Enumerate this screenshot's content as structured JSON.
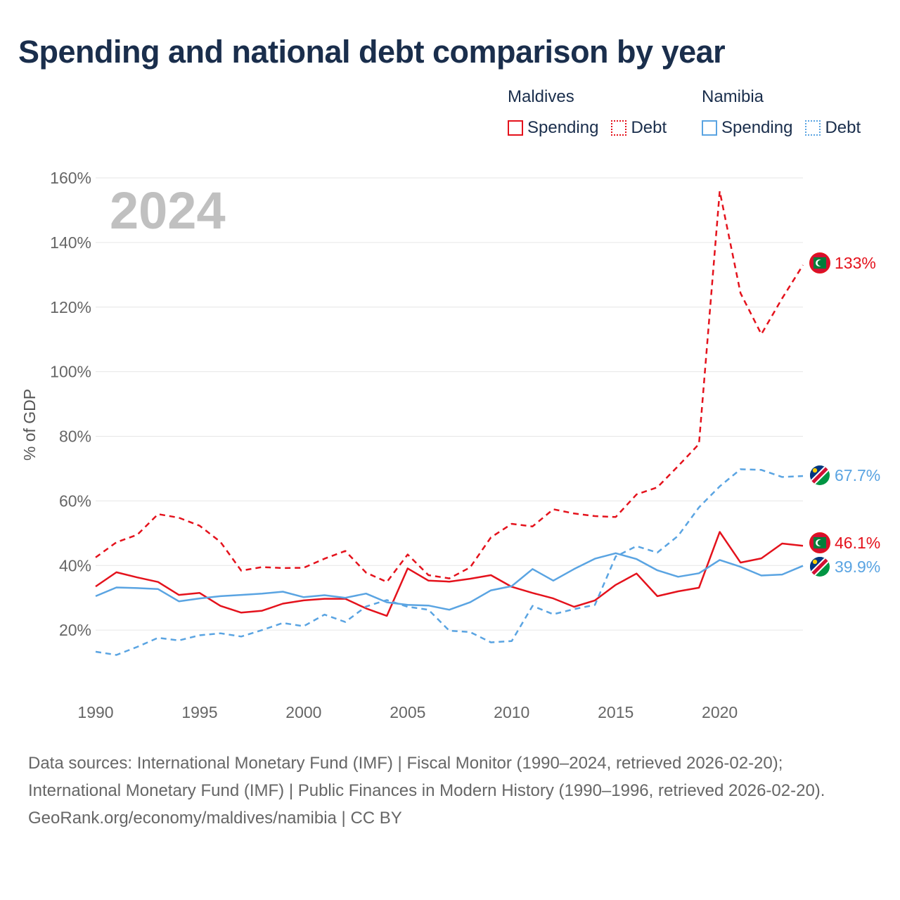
{
  "title": "Spending and national debt comparison by year",
  "legend": {
    "groups": [
      {
        "country": "Maldives",
        "color": "#e4121c",
        "items": [
          {
            "label": "Spending",
            "style": "solid"
          },
          {
            "label": "Debt",
            "style": "dotted"
          }
        ]
      },
      {
        "country": "Namibia",
        "color": "#5aa4e2",
        "items": [
          {
            "label": "Spending",
            "style": "solid"
          },
          {
            "label": "Debt",
            "style": "dotted"
          }
        ]
      }
    ]
  },
  "year_label": "2024",
  "footer": {
    "sources": "Data sources: International Monetary Fund (IMF) | Fiscal Monitor (1990–2024, retrieved 2026-02-20); International Monetary Fund (IMF) | Public Finances in Modern History (1990–1996, retrieved 2026-02-20).",
    "credit": "GeoRank.org/economy/maldives/namibia | CC BY"
  },
  "chart_data": {
    "type": "line",
    "title": "Spending and national debt comparison by year",
    "xlabel": "",
    "ylabel": "% of GDP",
    "xlim": [
      1990,
      2024
    ],
    "ylim": [
      0,
      160
    ],
    "x_ticks": [
      1990,
      1995,
      2000,
      2005,
      2010,
      2015,
      2020
    ],
    "x_tick_labels": [
      "1990",
      "1995",
      "2000",
      "2005",
      "2010",
      "2015",
      "2020"
    ],
    "y_ticks": [
      20,
      40,
      60,
      80,
      100,
      120,
      140,
      160
    ],
    "y_tick_labels": [
      "20%",
      "40%",
      "60%",
      "80%",
      "100%",
      "120%",
      "140%",
      "160%"
    ],
    "grid": true,
    "legend_position": "top-right",
    "x": [
      1990,
      1991,
      1992,
      1993,
      1994,
      1995,
      1996,
      1997,
      1998,
      1999,
      2000,
      2001,
      2002,
      2003,
      2004,
      2005,
      2006,
      2007,
      2008,
      2009,
      2010,
      2011,
      2012,
      2013,
      2014,
      2015,
      2016,
      2017,
      2018,
      2019,
      2020,
      2021,
      2022,
      2023,
      2024
    ],
    "series": [
      {
        "name": "Maldives Spending",
        "country": "Maldives",
        "color": "#e4121c",
        "dashed": false,
        "end_label": "46.1%",
        "values": [
          33.5,
          37.9,
          36.3,
          34.9,
          30.9,
          31.5,
          27.5,
          25.4,
          26.0,
          28.2,
          29.2,
          29.7,
          29.7,
          26.7,
          24.4,
          39.1,
          35.3,
          35.0,
          35.9,
          37.0,
          33.4,
          31.5,
          29.8,
          27.2,
          29.2,
          34.0,
          37.5,
          30.5,
          32.0,
          33.1,
          50.4,
          40.9,
          42.2,
          46.8,
          46.1
        ]
      },
      {
        "name": "Maldives Debt",
        "country": "Maldives",
        "color": "#e4121c",
        "dashed": true,
        "end_label": "133%",
        "values": [
          42.5,
          47.2,
          49.5,
          55.9,
          54.8,
          52.3,
          47.3,
          38.4,
          39.5,
          39.2,
          39.3,
          42.1,
          44.5,
          37.8,
          34.9,
          43.4,
          37.0,
          36.0,
          39.4,
          48.7,
          52.9,
          52.1,
          57.4,
          56.1,
          55.3,
          55.0,
          62.0,
          64.2,
          70.8,
          77.6,
          155.9,
          124.3,
          111.6,
          122.7,
          133.0
        ]
      },
      {
        "name": "Namibia Spending",
        "country": "Namibia",
        "color": "#5aa4e2",
        "dashed": false,
        "end_label": "39.9%",
        "values": [
          30.5,
          33.2,
          33.0,
          32.7,
          28.9,
          29.8,
          30.5,
          30.9,
          31.3,
          31.9,
          30.2,
          30.8,
          30.0,
          31.3,
          28.6,
          27.8,
          27.6,
          26.3,
          28.6,
          32.3,
          33.6,
          38.9,
          35.3,
          38.9,
          42.1,
          43.8,
          42.0,
          38.5,
          36.5,
          37.6,
          41.7,
          39.6,
          36.9,
          37.2,
          39.9
        ]
      },
      {
        "name": "Namibia Debt",
        "country": "Namibia",
        "color": "#5aa4e2",
        "dashed": true,
        "end_label": "67.7%",
        "values": [
          13.3,
          12.3,
          14.8,
          17.6,
          16.8,
          18.4,
          19.0,
          18.0,
          20.0,
          22.2,
          21.2,
          24.8,
          22.5,
          27.3,
          29.3,
          27.2,
          26.3,
          19.8,
          19.4,
          16.2,
          16.6,
          27.5,
          24.9,
          26.5,
          27.8,
          42.8,
          46.0,
          44.0,
          49.2,
          58.0,
          64.5,
          69.8,
          69.6,
          67.4,
          67.7
        ]
      }
    ]
  }
}
